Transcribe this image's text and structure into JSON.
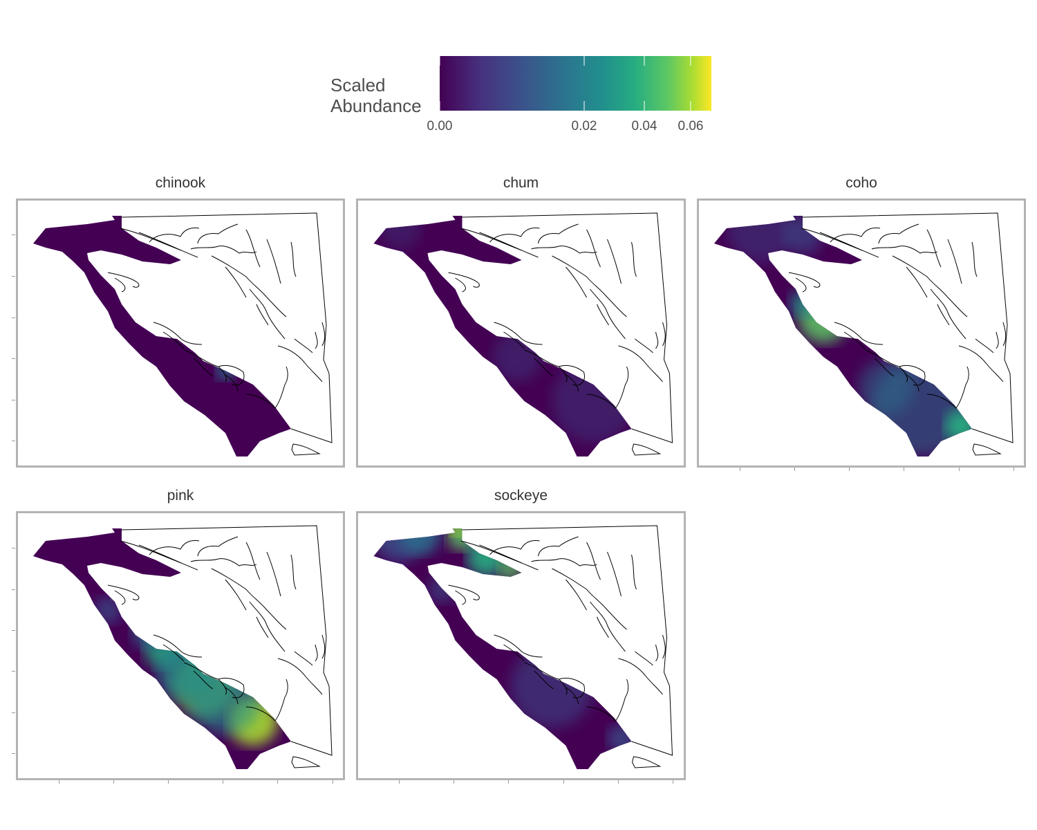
{
  "legend": {
    "title_line1": "Scaled",
    "title_line2": "Abundance",
    "ticks": [
      "0.00",
      "0.02",
      "0.04",
      "0.06"
    ],
    "colors": [
      "#440154",
      "#3b528b",
      "#21908d",
      "#5dc863",
      "#fde725"
    ]
  },
  "facets": [
    {
      "name": "chinook",
      "hotspots": []
    },
    {
      "name": "chum",
      "hotspots": []
    },
    {
      "name": "coho",
      "hotspots": []
    },
    {
      "name": "pink",
      "hotspots": []
    },
    {
      "name": "sockeye",
      "hotspots": []
    }
  ],
  "colors": {
    "panel_border": "#b3b3b3",
    "coast_line": "#000000",
    "low": "#440154",
    "mid": "#21908d",
    "high": "#fde725"
  }
}
